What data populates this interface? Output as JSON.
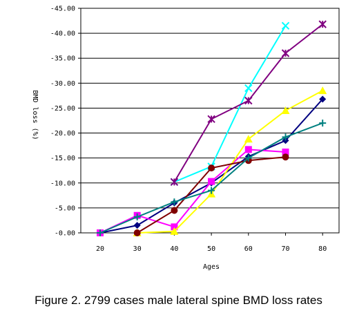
{
  "caption": "Figure 2. 2799 cases male lateral spine BMD loss rates",
  "chart_data": {
    "type": "line",
    "title": "",
    "xlabel": "Ages",
    "ylabel": "BMD loss (%)",
    "categories": [
      "20",
      "30",
      "40",
      "50",
      "60",
      "70",
      "80"
    ],
    "y_tick_labels": [
      "-45.00",
      "-40.00",
      "-35.00",
      "-30.00",
      "-25.00",
      "-20.00",
      "-15.00",
      "-10.00",
      "-5.00",
      "-0.00"
    ],
    "ylim": [
      0,
      -45
    ],
    "y_axis_inverted": true,
    "grid": "horizontal",
    "legend": "none",
    "series": [
      {
        "color": "#000080",
        "marker": "diamond",
        "values": [
          0,
          -1.5,
          -6,
          -10,
          -15.3,
          -18.5,
          -26.8
        ]
      },
      {
        "color": "#ff00ff",
        "marker": "square",
        "values": [
          0,
          -3.5,
          -1.2,
          -10.3,
          -16.7,
          -16.2,
          null
        ]
      },
      {
        "color": "#ffff00",
        "marker": "triangle",
        "values": [
          null,
          0,
          -0.3,
          -7.8,
          -18.8,
          -24.5,
          -28.5
        ]
      },
      {
        "color": "#00ffff",
        "marker": "x",
        "values": [
          null,
          null,
          -10.2,
          -13.3,
          -29,
          -41.5,
          null
        ]
      },
      {
        "color": "#800080",
        "marker": "star",
        "values": [
          null,
          null,
          -10.2,
          -22.8,
          -26.5,
          -36,
          -41.8
        ]
      },
      {
        "color": "#800000",
        "marker": "circle",
        "values": [
          null,
          0,
          -4.5,
          -13,
          -14.5,
          -15.2,
          null
        ]
      },
      {
        "color": "#008080",
        "marker": "plus",
        "values": [
          0,
          -3.2,
          -6.2,
          -8.5,
          -15,
          -19.2,
          -22
        ]
      }
    ]
  }
}
